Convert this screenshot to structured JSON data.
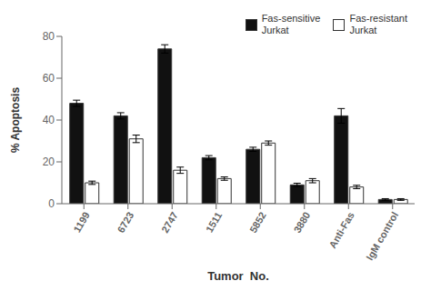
{
  "chart_data": {
    "type": "bar",
    "xlabel": "Tumor  No.",
    "ylabel": "% Apoptosis",
    "categories": [
      "1199",
      "6723",
      "2747",
      "1511",
      "5852",
      "3880",
      "Anti-Fas",
      "IgM control"
    ],
    "series": [
      {
        "name": "Fas-sensitive\nJurkat",
        "color": "#111111",
        "values": [
          48,
          42,
          74,
          22,
          26,
          9,
          42,
          2
        ],
        "errors": [
          1.5,
          1.5,
          2.0,
          1.0,
          1.0,
          0.8,
          3.5,
          0.4
        ]
      },
      {
        "name": "Fas-resistant\nJurkat",
        "color": "#ffffff",
        "values": [
          10,
          31,
          16,
          12,
          29,
          11,
          8,
          2
        ],
        "errors": [
          0.8,
          1.8,
          1.5,
          0.8,
          1.0,
          1.0,
          0.8,
          0.4
        ]
      }
    ],
    "ylim": [
      0,
      80
    ],
    "yticks": [
      0,
      20,
      40,
      60,
      80
    ],
    "grid": false,
    "legend": "upper right"
  }
}
